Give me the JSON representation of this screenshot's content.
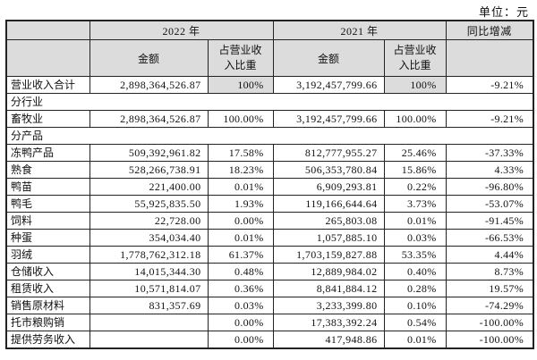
{
  "page": {
    "unit_label": "单位：元"
  },
  "colors": {
    "header_bg": "#dcdcdc",
    "shaded_cell_bg": "#dcdcdc",
    "border": "#222222",
    "text": "#111111"
  },
  "table": {
    "header": {
      "col_2022": "2022 年",
      "col_2021": "2021 年",
      "col_yoy": "同比增减",
      "sub_amount": "金额",
      "sub_pct": "占营业收入比重"
    },
    "rows": [
      {
        "type": "data",
        "label": "营业收入合计",
        "a2022": "2,898,364,526.87",
        "p2022": "100%",
        "a2021": "3,192,457,799.66",
        "p2021": "100%",
        "yoy": "-9.21%",
        "pct_shaded": true
      },
      {
        "type": "section",
        "label": "分行业"
      },
      {
        "type": "data",
        "label": "畜牧业",
        "a2022": "2,898,364,526.87",
        "p2022": "100.00%",
        "a2021": "3,192,457,799.66",
        "p2021": "100.00%",
        "yoy": "-9.21%"
      },
      {
        "type": "section",
        "label": "分产品"
      },
      {
        "type": "data",
        "label": "冻鸭产品",
        "a2022": "509,392,961.82",
        "p2022": "17.58%",
        "a2021": "812,777,955.27",
        "p2021": "25.46%",
        "yoy": "-37.33%"
      },
      {
        "type": "data",
        "label": "熟食",
        "a2022": "528,266,738.91",
        "p2022": "18.23%",
        "a2021": "506,353,780.84",
        "p2021": "15.86%",
        "yoy": "4.33%"
      },
      {
        "type": "data",
        "label": "鸭苗",
        "a2022": "221,400.00",
        "p2022": "0.01%",
        "a2021": "6,909,293.81",
        "p2021": "0.22%",
        "yoy": "-96.80%"
      },
      {
        "type": "data",
        "label": "鸭毛",
        "a2022": "55,925,835.50",
        "p2022": "1.93%",
        "a2021": "119,166,644.64",
        "p2021": "3.73%",
        "yoy": "-53.07%"
      },
      {
        "type": "data",
        "label": "饲料",
        "a2022": "22,728.00",
        "p2022": "0.00%",
        "a2021": "265,803.08",
        "p2021": "0.01%",
        "yoy": "-91.45%"
      },
      {
        "type": "data",
        "label": "种蛋",
        "a2022": "354,034.40",
        "p2022": "0.01%",
        "a2021": "1,057,885.10",
        "p2021": "0.03%",
        "yoy": "-66.53%"
      },
      {
        "type": "data",
        "label": "羽绒",
        "a2022": "1,778,762,312.18",
        "p2022": "61.37%",
        "a2021": "1,703,159,827.88",
        "p2021": "53.35%",
        "yoy": "4.44%"
      },
      {
        "type": "data",
        "label": "仓储收入",
        "a2022": "14,015,344.30",
        "p2022": "0.48%",
        "a2021": "12,889,984.02",
        "p2021": "0.40%",
        "yoy": "8.73%"
      },
      {
        "type": "data",
        "label": "租赁收入",
        "a2022": "10,571,814.07",
        "p2022": "0.36%",
        "a2021": "8,841,884.12",
        "p2021": "0.28%",
        "yoy": "19.57%"
      },
      {
        "type": "data",
        "label": "销售原材料",
        "a2022": "831,357.69",
        "p2022": "0.03%",
        "a2021": "3,233,399.80",
        "p2021": "0.10%",
        "yoy": "-74.29%"
      },
      {
        "type": "data",
        "label": "托市粮购销",
        "a2022": "",
        "p2022": "0.00%",
        "a2021": "17,383,392.24",
        "p2021": "0.54%",
        "yoy": "-100.00%"
      },
      {
        "type": "data",
        "label": "提供劳务收入",
        "a2022": "",
        "p2022": "0.00%",
        "a2021": "417,948.86",
        "p2021": "0.01%",
        "yoy": "-100.00%"
      }
    ]
  }
}
